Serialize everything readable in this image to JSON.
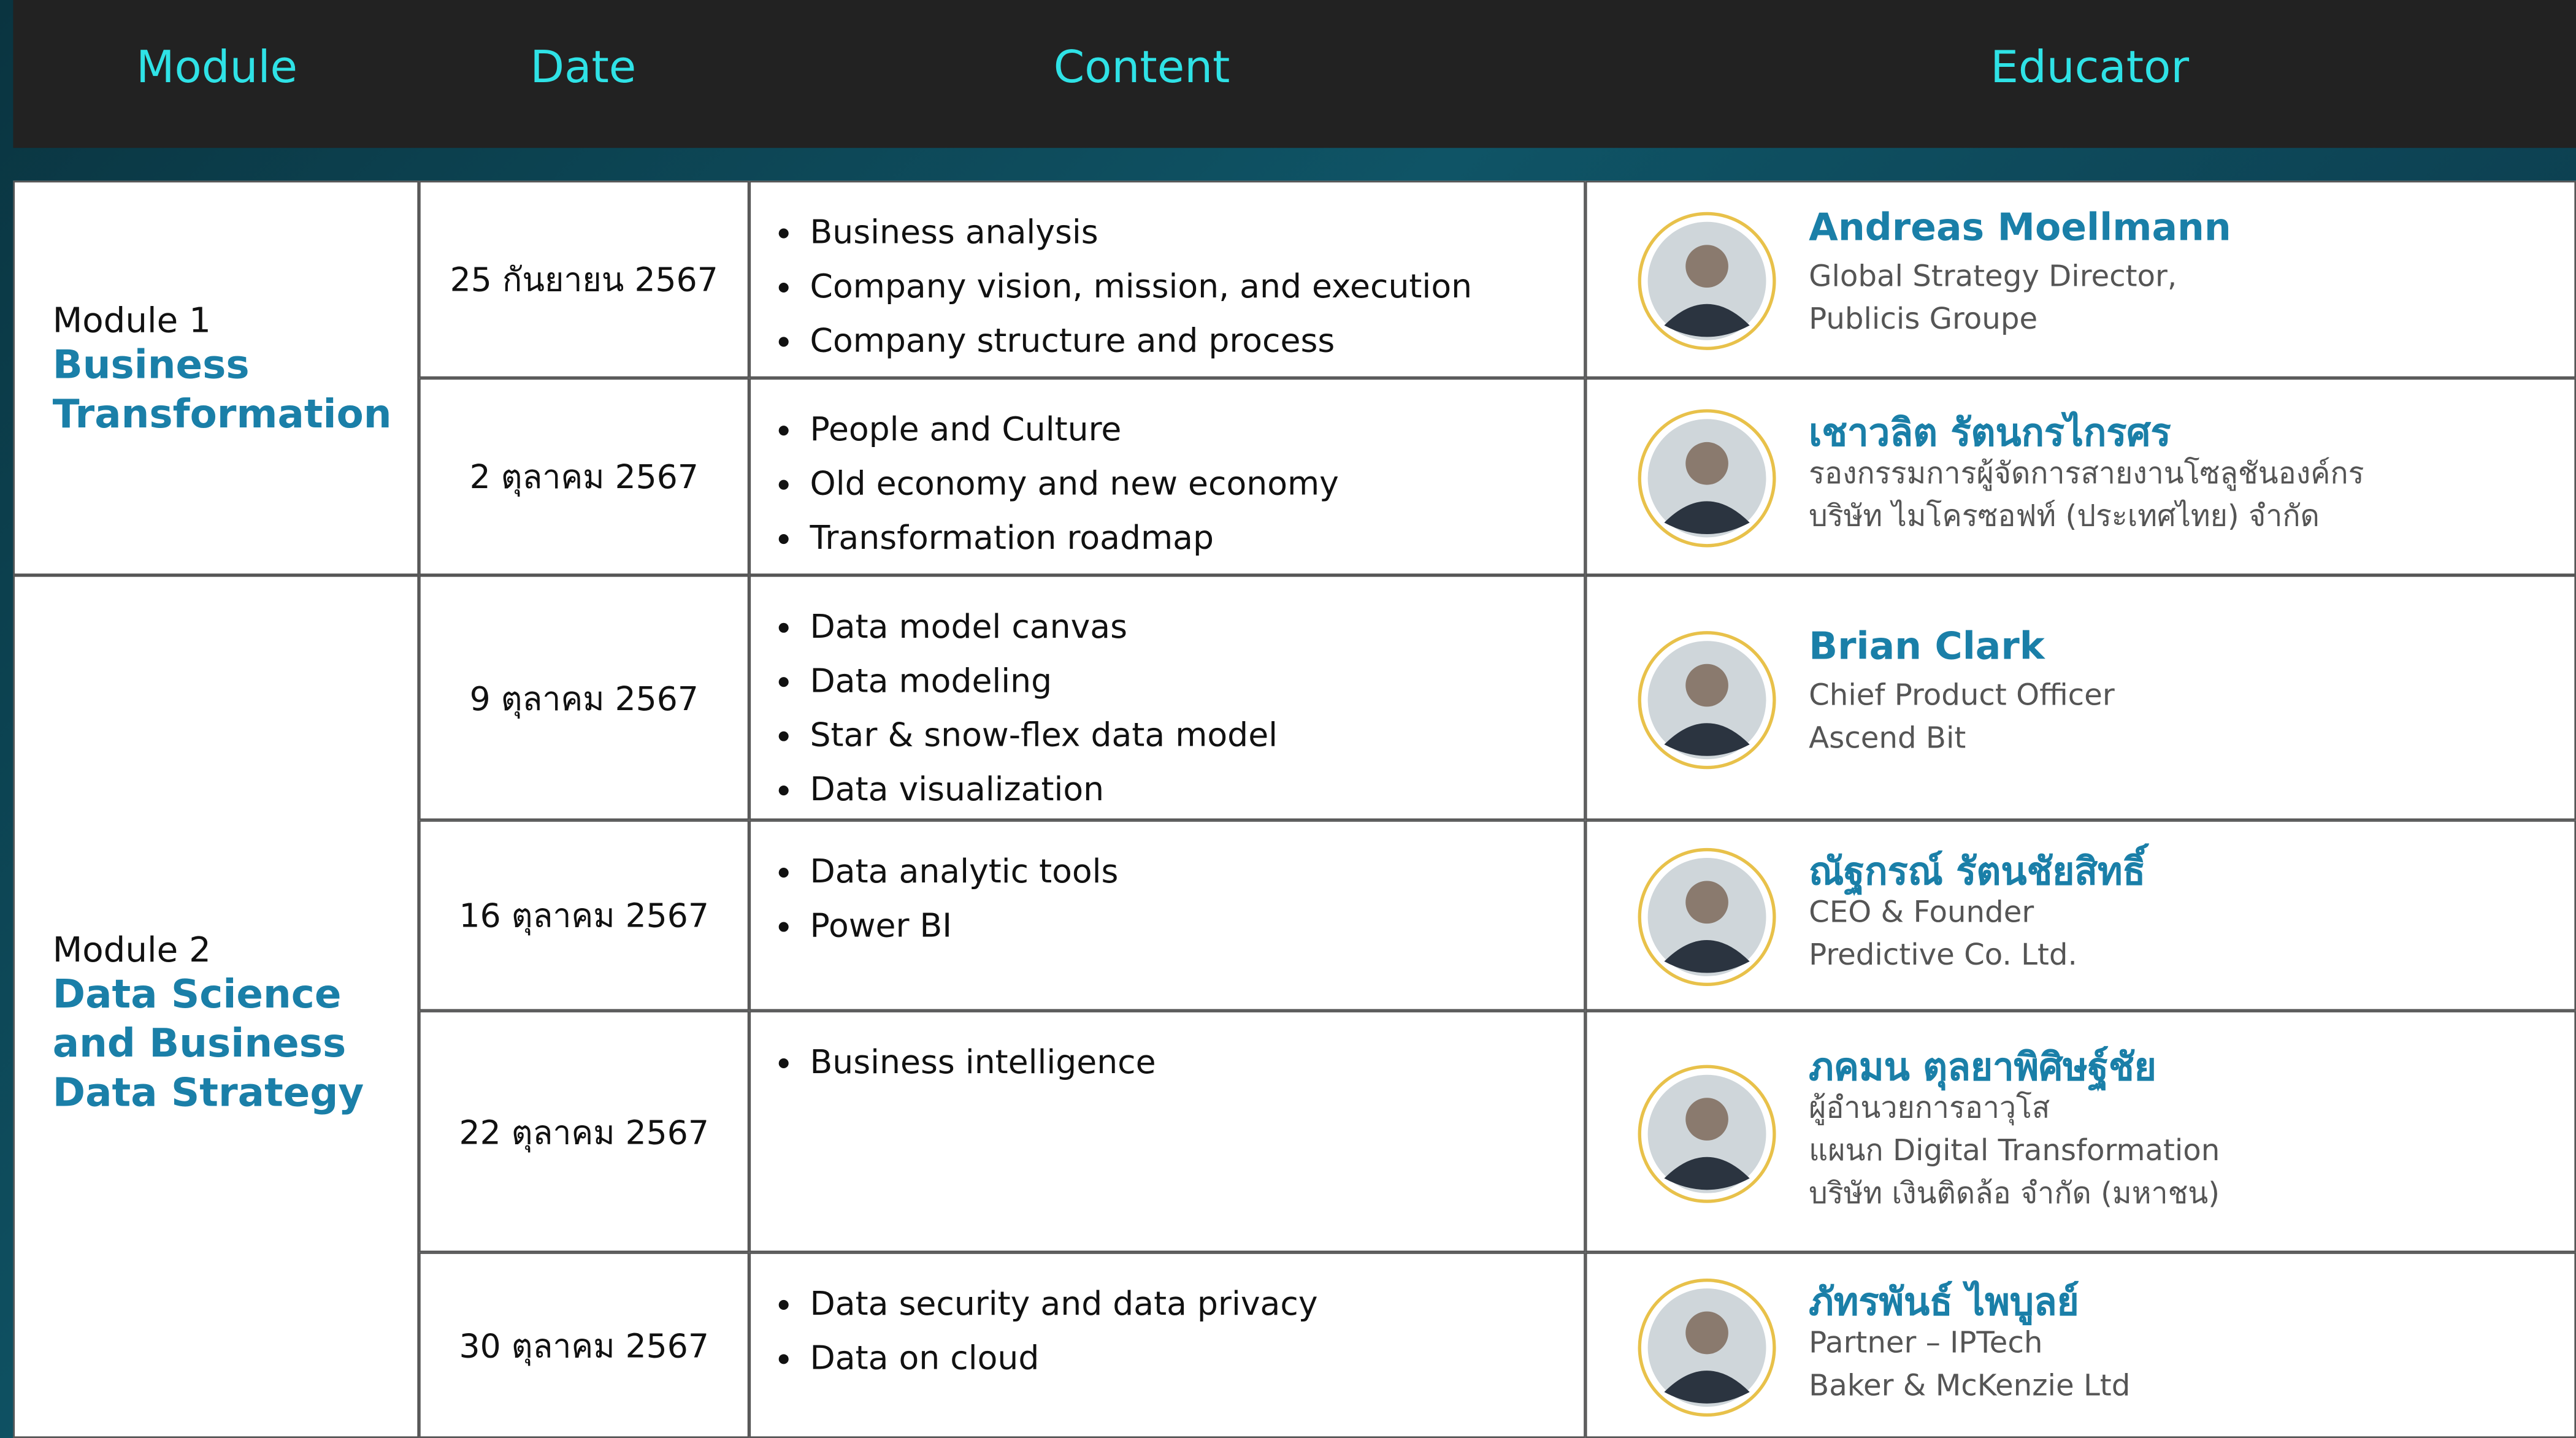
{
  "header": [
    "Module",
    "Date",
    "Content",
    "Educator"
  ],
  "modules": [
    {
      "label": "Module 1",
      "name": "Business Transformation",
      "sessions": [
        {
          "date": "25 กันยายน 2567",
          "topics": [
            "Business analysis",
            "Company vision, mission, and execution",
            "Company structure and process"
          ],
          "educator": {
            "name": "Andreas Moellmann",
            "lines": [
              "Global Strategy Director,",
              "Publicis Groupe"
            ]
          }
        },
        {
          "date": "2 ตุลาคม 2567",
          "topics": [
            "People and Culture",
            "Old economy and new economy",
            "Transformation roadmap"
          ],
          "educator": {
            "name": "เชาวลิต รัตนกรไกรศร",
            "lines": [
              "รองกรรมการผู้จัดการสายงานโซลูชันองค์กร",
              "บริษัท ไมโครซอฟท์ (ประเทศไทย) จำกัด"
            ]
          }
        }
      ]
    },
    {
      "label": "Module 2",
      "name": "Data Science and Business Data Strategy",
      "sessions": [
        {
          "date": "9 ตุลาคม 2567",
          "topics": [
            "Data model canvas",
            "Data modeling",
            "Star & snow-flex data model",
            "Data visualization"
          ],
          "educator": {
            "name": "Brian Clark",
            "lines": [
              "Chief Product Officer",
              "Ascend Bit"
            ]
          }
        },
        {
          "date": "16 ตุลาคม 2567",
          "topics": [
            "Data analytic tools",
            "Power BI"
          ],
          "educator": {
            "name": "ณัฐกรณ์ รัตนชัยสิทธิ์",
            "lines": [
              "CEO & Founder",
              "Predictive Co. Ltd."
            ]
          }
        },
        {
          "date": "22 ตุลาคม 2567",
          "topics": [
            "Business intelligence"
          ],
          "educator": {
            "name": "ภคมน ตุลยาพิศิษฐ์ชัย",
            "lines": [
              "ผู้อำนวยการอาวุโส",
              "แผนก Digital Transformation",
              "บริษัท เงินติดล้อ จำกัด (มหาชน)"
            ]
          }
        },
        {
          "date": "30 ตุลาคม 2567",
          "topics": [
            "Data security and data privacy",
            "Data on cloud"
          ],
          "educator": {
            "name": "ภัทรพันธ์ ไพบูลย์",
            "lines": [
              "Partner – IPTech",
              "Baker & McKenzie Ltd"
            ]
          }
        }
      ]
    }
  ]
}
